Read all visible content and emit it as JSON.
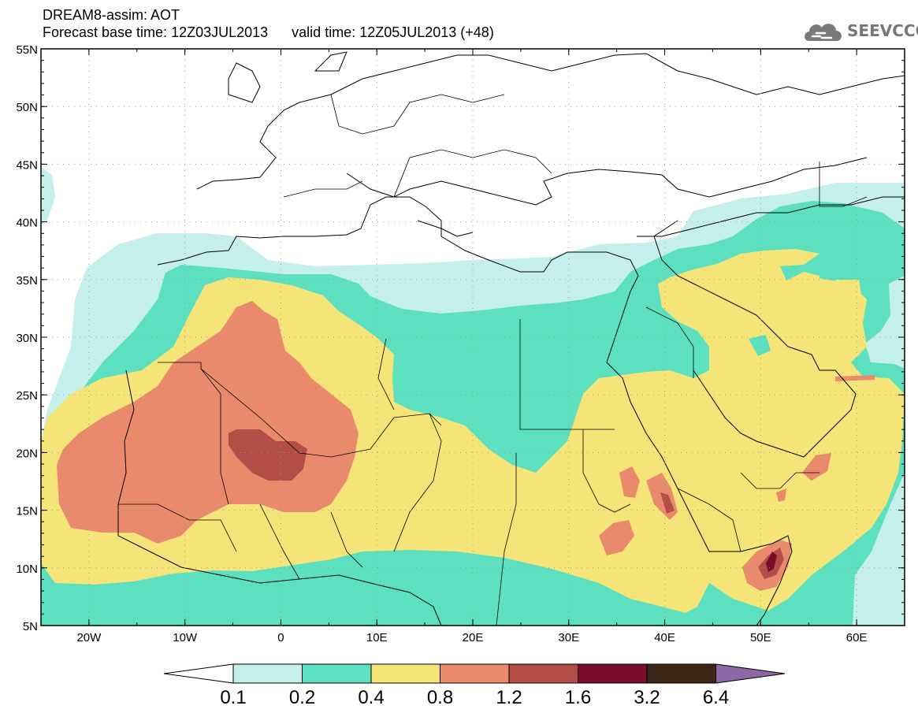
{
  "header": {
    "line1": "DREAM8-assim: AOT",
    "base_label": "Forecast base time: 12Z03JUL2013",
    "valid_label": "valid time: 12Z05JUL2013 (+48)"
  },
  "logo": {
    "text": "SEEVCCC",
    "icon": "cloud-icon"
  },
  "map": {
    "lon_range": [
      -25,
      65
    ],
    "lat_range": [
      5,
      55
    ],
    "lat_ticks": [
      "5N",
      "10N",
      "15N",
      "20N",
      "25N",
      "30N",
      "35N",
      "40N",
      "45N",
      "50N",
      "55N"
    ],
    "lon_ticks": [
      "20W",
      "10W",
      "0",
      "10E",
      "20E",
      "30E",
      "40E",
      "50E",
      "60E"
    ],
    "colors": {
      "c1": "#c4efea",
      "c2": "#5de0c0",
      "c3": "#f5e478",
      "c4": "#e98a6c",
      "c5": "#b24e46",
      "c6": "#7a0c2d",
      "c7": "#3a2516",
      "c8": "#8e68a6"
    }
  },
  "colorbar": {
    "labels": [
      "0.1",
      "0.2",
      "0.4",
      "0.8",
      "1.2",
      "1.6",
      "3.2",
      "6.4"
    ]
  }
}
